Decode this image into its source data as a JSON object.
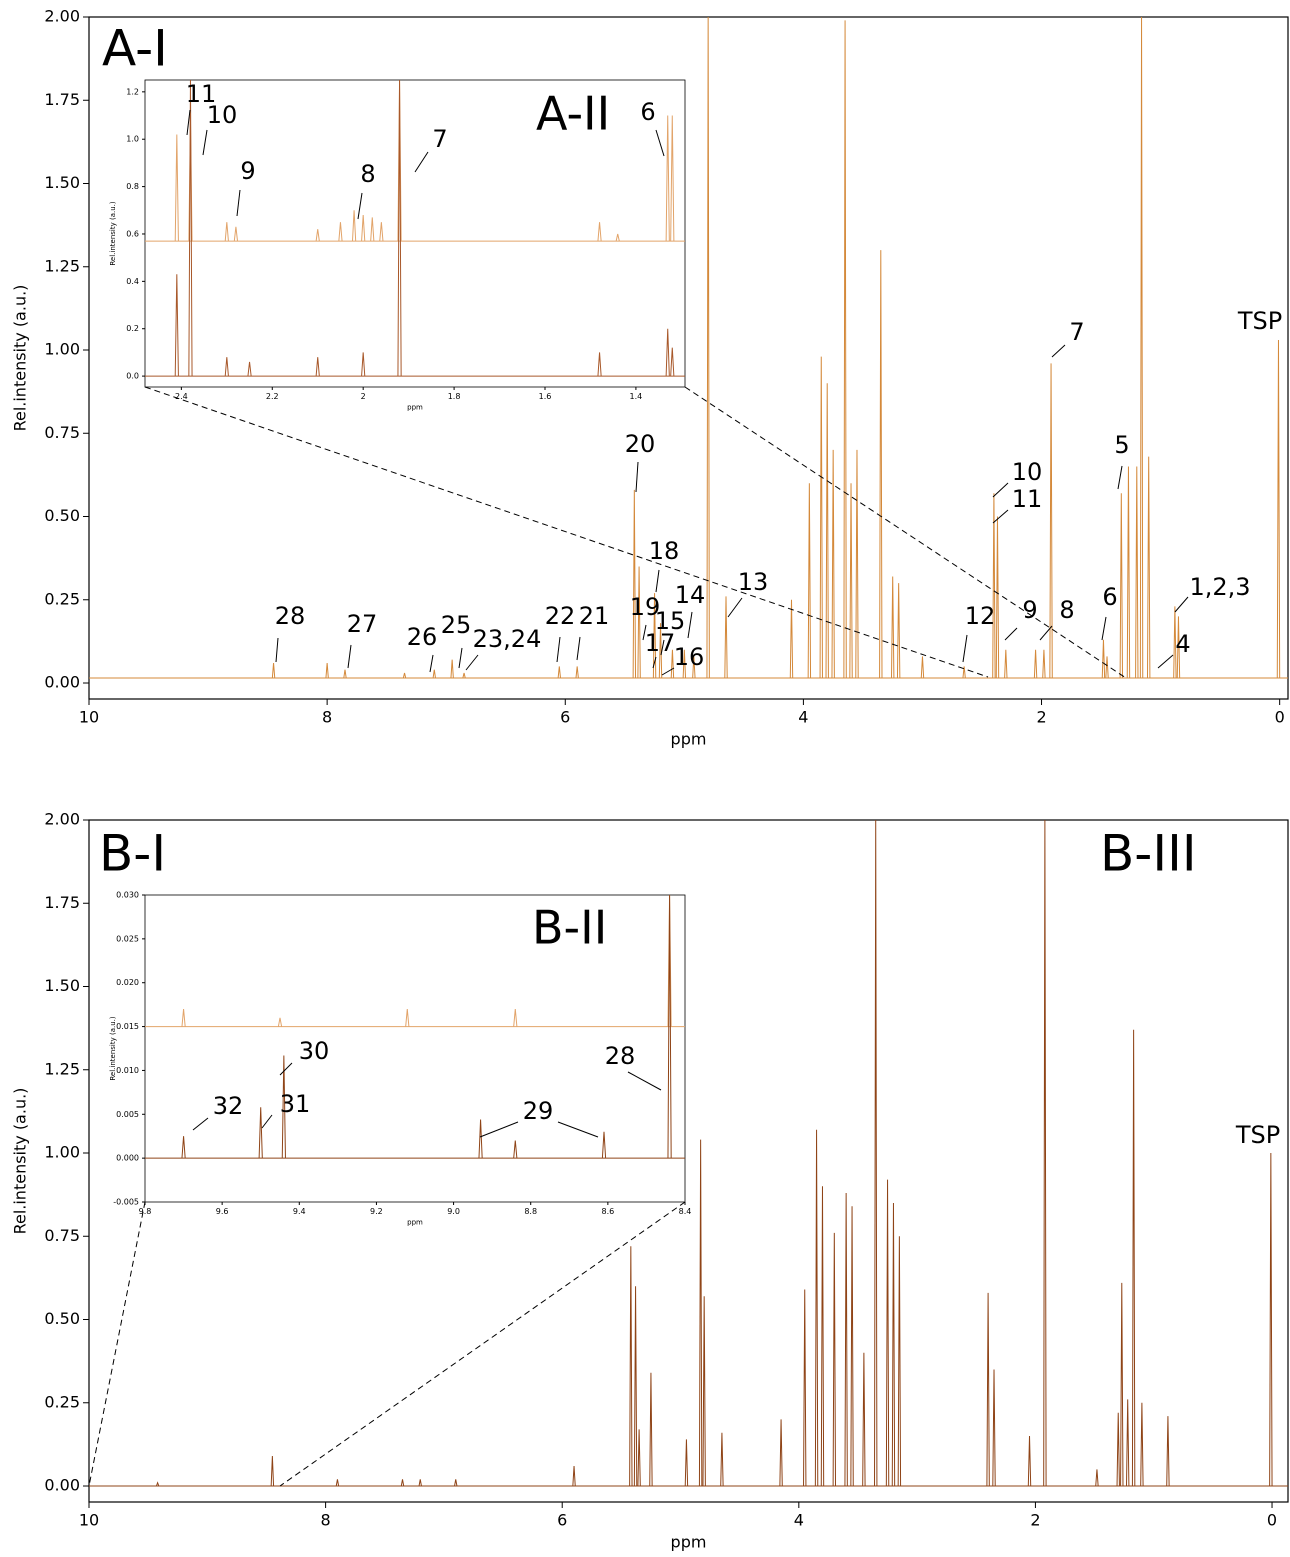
{
  "chart_data": [
    {
      "type": "spectrum",
      "panel_label": "A-I",
      "xlabel": "ppm",
      "ylabel": "Rel.intensity (a.u.)",
      "xlim": [
        10,
        -0.07
      ],
      "ylim": [
        -0.048,
        2.0
      ],
      "xticks": [
        10,
        8,
        6,
        4,
        2,
        0
      ],
      "yticks": [
        {
          "value": 0,
          "label": "0.00"
        },
        0.25,
        {
          "value": 0.5,
          "label": "0.50"
        },
        0.75,
        {
          "value": 1,
          "label": "1.00"
        },
        1.25,
        {
          "value": 1.5,
          "label": "1.50"
        },
        1.75,
        {
          "value": 2,
          "label": "2.00"
        }
      ],
      "series": [
        {
          "color": "#d4893a",
          "baseline": 0.015,
          "x": [
            8.45,
            8.0,
            7.85,
            7.35,
            7.1,
            6.95,
            6.85,
            6.05,
            5.9,
            5.42,
            5.38,
            5.25,
            5.2,
            5.1,
            5.0,
            4.92,
            4.8,
            4.65,
            4.1,
            3.95,
            3.85,
            3.8,
            3.75,
            3.65,
            3.6,
            3.55,
            3.35,
            3.25,
            3.2,
            3.0,
            2.65,
            2.4,
            2.37,
            2.3,
            2.05,
            1.98,
            1.92,
            1.48,
            1.45,
            1.33,
            1.27,
            1.2,
            1.16,
            1.1,
            0.88,
            0.85,
            0.01
          ],
          "values": [
            0.06,
            0.06,
            0.04,
            0.03,
            0.04,
            0.07,
            0.03,
            0.05,
            0.05,
            0.58,
            0.35,
            0.27,
            0.18,
            0.1,
            0.1,
            0.08,
            2.0,
            0.26,
            0.25,
            0.6,
            0.98,
            0.9,
            0.7,
            1.99,
            0.6,
            0.7,
            1.3,
            0.32,
            0.3,
            0.08,
            0.05,
            0.57,
            0.5,
            0.1,
            0.1,
            0.1,
            0.96,
            0.13,
            0.08,
            0.57,
            0.65,
            0.65,
            2.0,
            0.68,
            0.23,
            0.2,
            1.03
          ]
        }
      ],
      "annotations": [
        "28",
        "27",
        "26",
        "25",
        "23,24",
        "22",
        "21",
        "20",
        "18",
        "19",
        "15",
        "14",
        "17",
        "16",
        "13",
        "12",
        "9",
        "8",
        "10",
        "11",
        "7",
        "6",
        "5",
        "1,2,3",
        "4",
        "TSP"
      ]
    },
    {
      "type": "spectrum",
      "panel_label": "A-II",
      "xlabel": "ppm",
      "ylabel": "Rel.intensity (a.u.)",
      "xlim": [
        2.48,
        1.292
      ],
      "ylim": [
        -0.046,
        1.25
      ],
      "xticks": [
        2.4,
        2.2,
        2.0,
        1.8,
        1.6,
        1.4
      ],
      "yticks": [
        {
          "value": 0,
          "label": "0.0"
        },
        0.2,
        0.4,
        0.6,
        0.8,
        {
          "value": 1,
          "label": "1.0"
        },
        1.2
      ],
      "series": [
        {
          "color": "#e2a46a",
          "baseline": 0.57,
          "x": [
            2.41,
            2.38,
            2.3,
            2.28,
            2.1,
            2.05,
            2.02,
            2.0,
            1.98,
            1.96,
            1.92,
            1.48,
            1.44,
            1.33,
            1.32
          ],
          "values": [
            1.02,
            1.08,
            0.65,
            0.63,
            0.62,
            0.65,
            0.7,
            0.68,
            0.67,
            0.65,
            1.25,
            0.65,
            0.6,
            1.1,
            1.1
          ]
        },
        {
          "color": "#a8582a",
          "baseline": 0.0,
          "x": [
            2.41,
            2.38,
            2.3,
            2.25,
            2.1,
            2.0,
            1.92,
            1.48,
            1.33,
            1.32
          ],
          "values": [
            0.43,
            1.25,
            0.08,
            0.06,
            0.08,
            0.1,
            1.25,
            0.1,
            0.2,
            0.12
          ]
        }
      ],
      "annotations": [
        "11",
        "10",
        "9",
        "8",
        "7",
        "6"
      ]
    },
    {
      "type": "spectrum",
      "panel_label": "B-I",
      "image_label": "B-III",
      "xlabel": "ppm",
      "ylabel": "Rel.intensity (a.u.)",
      "xlim": [
        10,
        -0.135
      ],
      "ylim": [
        -0.048,
        2.0
      ],
      "xticks": [
        10,
        8,
        6,
        4,
        2,
        0
      ],
      "yticks": [
        {
          "value": 0,
          "label": "0.00"
        },
        0.25,
        {
          "value": 0.5,
          "label": "0.50"
        },
        0.75,
        {
          "value": 1,
          "label": "1.00"
        },
        1.25,
        {
          "value": 1.5,
          "label": "1.50"
        },
        1.75,
        {
          "value": 2,
          "label": "2.00"
        }
      ],
      "series": [
        {
          "color": "#8f4417",
          "baseline": 0.0,
          "x": [
            9.42,
            8.45,
            7.9,
            7.35,
            7.2,
            6.9,
            5.9,
            5.42,
            5.38,
            5.35,
            5.25,
            4.95,
            4.83,
            4.8,
            4.65,
            4.15,
            3.95,
            3.85,
            3.8,
            3.7,
            3.6,
            3.55,
            3.45,
            3.35,
            3.25,
            3.2,
            3.15,
            2.4,
            2.35,
            2.05,
            1.92,
            1.48,
            1.3,
            1.27,
            1.22,
            1.17,
            1.1,
            0.88,
            0.01
          ],
          "values": [
            0.01,
            0.09,
            0.02,
            0.02,
            0.02,
            0.02,
            0.06,
            0.72,
            0.6,
            0.17,
            0.34,
            0.14,
            1.04,
            0.57,
            0.16,
            0.2,
            0.59,
            1.07,
            0.9,
            0.76,
            0.88,
            0.84,
            0.4,
            2.0,
            0.92,
            0.85,
            0.75,
            0.58,
            0.35,
            0.15,
            2.0,
            0.05,
            0.22,
            0.61,
            0.26,
            1.37,
            0.25,
            0.21,
            1.0
          ]
        }
      ],
      "annotations": [
        "TSP"
      ]
    },
    {
      "type": "spectrum",
      "panel_label": "B-II",
      "xlabel": "ppm",
      "ylabel": "Rel.intensity (a.u.)",
      "xlim": [
        9.8,
        8.4
      ],
      "ylim": [
        -0.005,
        0.03
      ],
      "xticks": [
        9.8,
        9.6,
        9.4,
        9.2,
        {
          "value": 9,
          "label": "9.0"
        },
        8.8,
        8.6,
        8.4
      ],
      "yticks": [
        -0.005,
        {
          "value": 0,
          "label": "0.000"
        },
        0.005,
        {
          "value": 0.01,
          "label": "0.010"
        },
        0.015,
        {
          "value": 0.02,
          "label": "0.020"
        },
        0.025,
        {
          "value": 0.03,
          "label": "0.030"
        }
      ],
      "series": [
        {
          "color": "#e2a46a",
          "baseline": 0.015,
          "x": [
            9.7,
            9.45,
            9.12,
            8.84,
            8.44
          ],
          "values": [
            0.017,
            0.016,
            0.017,
            0.017,
            0.03
          ]
        },
        {
          "color": "#8f4417",
          "baseline": 0.0,
          "x": [
            9.7,
            9.5,
            9.44,
            8.93,
            8.84,
            8.61,
            8.44
          ],
          "values": [
            0.0025,
            0.0058,
            0.0117,
            0.0044,
            0.002,
            0.003,
            0.03
          ]
        }
      ],
      "annotations": [
        "32",
        "31",
        "30",
        "29",
        "28"
      ]
    }
  ]
}
